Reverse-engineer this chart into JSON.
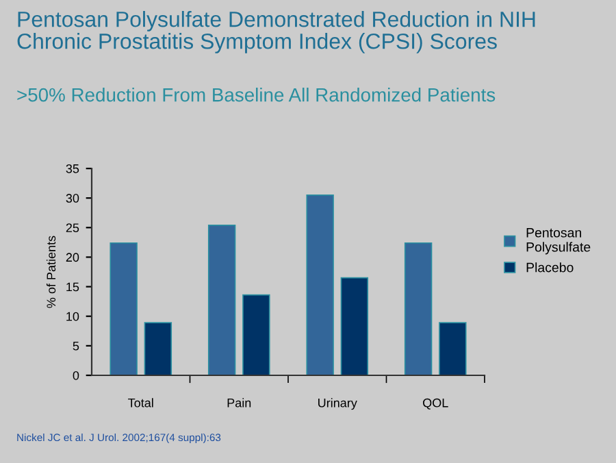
{
  "chart_data": {
    "type": "bar",
    "title": "Pentosan Polysulfate Demonstrated Reduction in NIH Chronic Prostatitis Symptom Index (CPSI) Scores",
    "subtitle": ">50% Reduction From Baseline All Randomized Patients",
    "ylabel": "% of Patients",
    "categories": [
      "Total",
      "Pain",
      "Urinary",
      "QOL"
    ],
    "series": [
      {
        "name": "Pentosan Polysulfate",
        "color": "#336699",
        "values": [
          22.4,
          25.4,
          30.5,
          22.4
        ]
      },
      {
        "name": "Placebo",
        "color": "#003366",
        "values": [
          8.9,
          13.6,
          16.5,
          8.9
        ]
      }
    ],
    "ylim": [
      0,
      35
    ],
    "yticks": [
      0,
      5,
      10,
      15,
      20,
      25,
      30,
      35
    ],
    "grid": false,
    "legend": "right",
    "annotations": [
      "Nickel JC et al. J Urol. 2002;167(4 suppl):63"
    ]
  }
}
